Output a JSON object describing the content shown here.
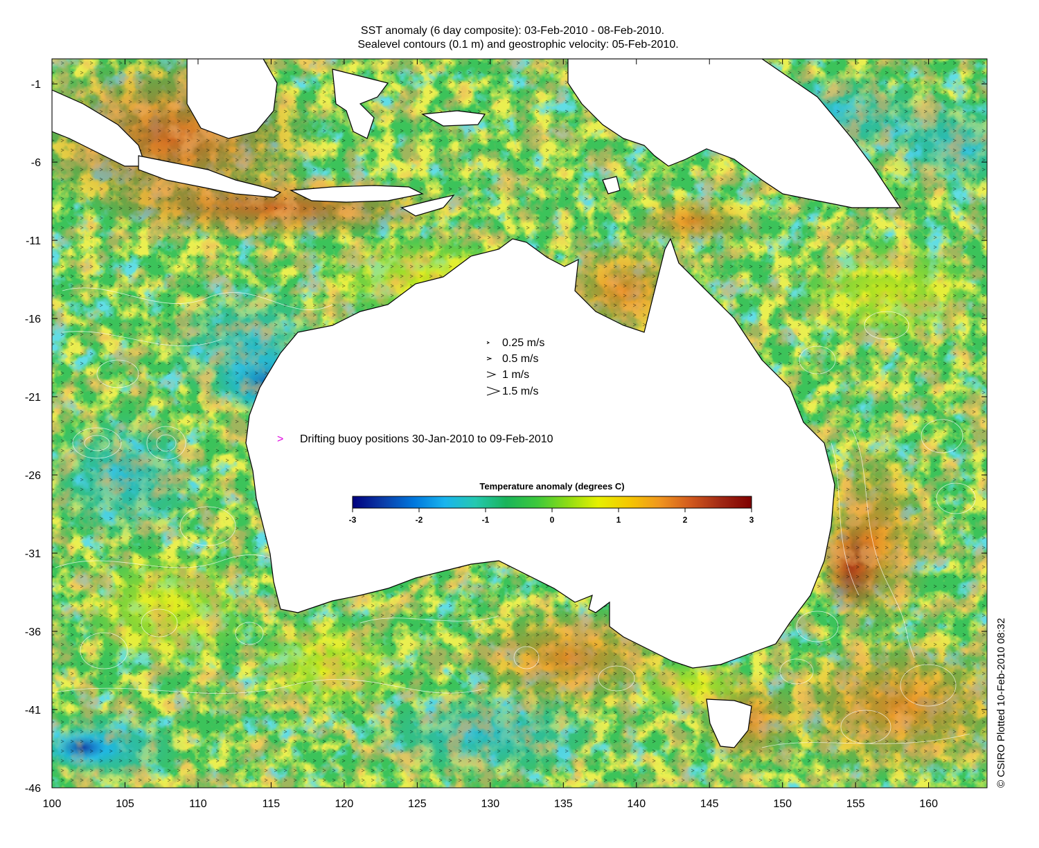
{
  "title": {
    "line1": "SST anomaly (6 day composite): 03-Feb-2010 - 08-Feb-2010.",
    "line2": "Sealevel contours (0.1 m) and geostrophic velocity: 05-Feb-2010."
  },
  "axes": {
    "x_ticks": [
      "100",
      "105",
      "110",
      "115",
      "120",
      "125",
      "130",
      "135",
      "140",
      "145",
      "150",
      "155",
      "160"
    ],
    "y_ticks": [
      "-1",
      "-6",
      "-11",
      "-16",
      "-21",
      "-26",
      "-31",
      "-36",
      "-41",
      "-46"
    ],
    "x_range": [
      100,
      164
    ],
    "y_range": [
      -46,
      0.6
    ]
  },
  "velocity_key": [
    {
      "label": "0.25 m/s",
      "speed": 0.25
    },
    {
      "label": "0.5 m/s",
      "speed": 0.5
    },
    {
      "label": "1 m/s",
      "speed": 1
    },
    {
      "label": "1.5 m/s",
      "speed": 1.5
    }
  ],
  "buoy_legend": {
    "symbol": ">",
    "label": "Drifting buoy positions 30-Jan-2010 to 09-Feb-2010",
    "color": "#e000e0"
  },
  "colorbar": {
    "title": "Temperature anomaly (degrees C)",
    "ticks": [
      "-3",
      "-2",
      "-1",
      "0",
      "1",
      "2",
      "3"
    ],
    "range": [
      -3,
      3
    ],
    "colors": [
      "#00007f",
      "#0a3ca8",
      "#0077dd",
      "#19b4ee",
      "#24c8b0",
      "#19b45a",
      "#3cc83c",
      "#8cdc14",
      "#e6f000",
      "#f5c800",
      "#f0961e",
      "#d25a1e",
      "#a02814",
      "#7f0000"
    ]
  },
  "colors": {
    "land": "#ffffff",
    "ocean_base": "#3cc35a",
    "contour": "#ffffff",
    "coastline": "#000000",
    "arrow": "#000000"
  },
  "copyright": "© CSIRO Plotted 10-Feb-2010 08:32"
}
